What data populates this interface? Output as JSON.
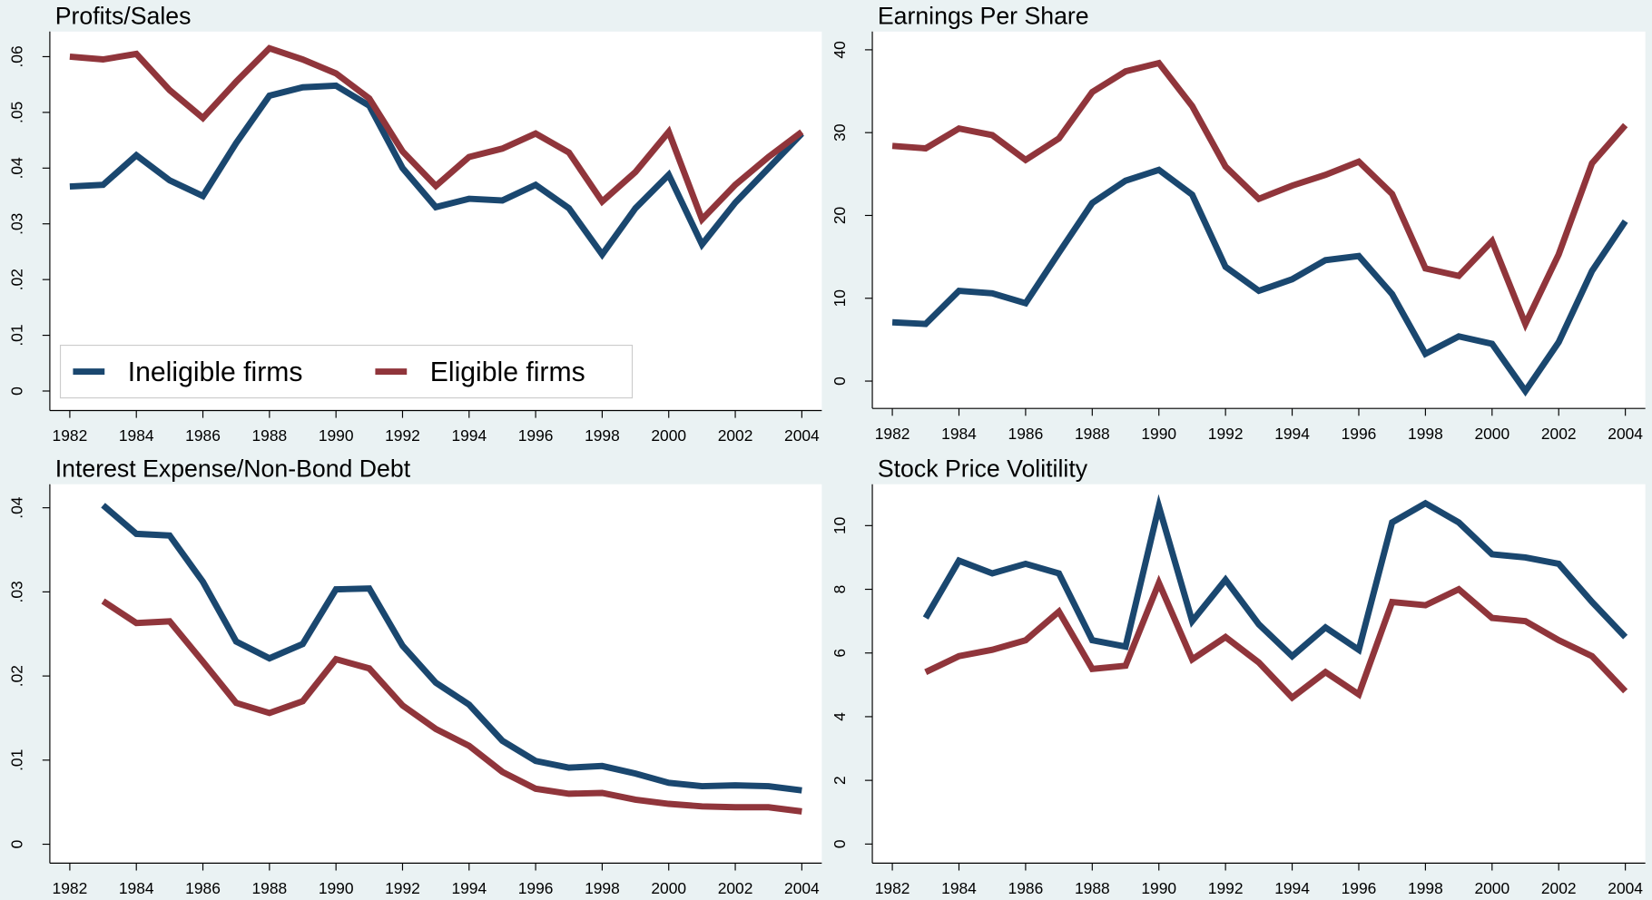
{
  "chart_data": [
    {
      "type": "line",
      "title": "Profits/Sales",
      "legend": "lower left",
      "grid": false,
      "x": [
        1982,
        1983,
        1984,
        1985,
        1986,
        1987,
        1988,
        1989,
        1990,
        1991,
        1992,
        1993,
        1994,
        1995,
        1996,
        1997,
        1998,
        1999,
        2000,
        2001,
        2002,
        2003,
        2004
      ],
      "xlim": [
        1981.4,
        2004.6
      ],
      "xticks": [
        1982,
        1984,
        1986,
        1988,
        1990,
        1992,
        1994,
        1996,
        1998,
        2000,
        2002,
        2004
      ],
      "ylim": [
        -0.0035,
        0.0645
      ],
      "yticks": [
        0,
        {
          "value": 0.01,
          "label": ".01"
        },
        {
          "value": 0.02,
          "label": ".02"
        },
        {
          "value": 0.03,
          "label": ".03"
        },
        {
          "value": 0.04,
          "label": ".04"
        },
        {
          "value": 0.05,
          "label": ".05"
        },
        {
          "value": 0.06,
          "label": ".06"
        }
      ],
      "series": [
        {
          "name": "Ineligible firms",
          "color": "#1a476f",
          "values": [
            0.0367,
            0.037,
            0.0423,
            0.0378,
            0.035,
            0.0445,
            0.053,
            0.0545,
            0.0548,
            0.0512,
            0.04,
            0.033,
            0.0345,
            0.0342,
            0.037,
            0.0328,
            0.0245,
            0.0328,
            0.0388,
            0.0263,
            0.0338,
            0.04,
            0.0462
          ]
        },
        {
          "name": "Eligible firms",
          "color": "#90353b",
          "values": [
            0.06,
            0.0595,
            0.0605,
            0.054,
            0.049,
            0.0555,
            0.0615,
            0.0595,
            0.057,
            0.0525,
            0.043,
            0.0368,
            0.042,
            0.0435,
            0.0462,
            0.0428,
            0.034,
            0.0393,
            0.0465,
            0.0308,
            0.037,
            0.042,
            0.0465
          ]
        }
      ]
    },
    {
      "type": "line",
      "title": "Earnings Per Share",
      "grid": false,
      "x": [
        1982,
        1983,
        1984,
        1985,
        1986,
        1987,
        1988,
        1989,
        1990,
        1991,
        1992,
        1993,
        1994,
        1995,
        1996,
        1997,
        1998,
        1999,
        2000,
        2001,
        2002,
        2003,
        2004
      ],
      "xlim": [
        1981.4,
        2004.6
      ],
      "xticks": [
        1982,
        1984,
        1986,
        1988,
        1990,
        1992,
        1994,
        1996,
        1998,
        2000,
        2002,
        2004
      ],
      "ylim": [
        -3.3,
        42.2
      ],
      "yticks": [
        0,
        10,
        20,
        30,
        40
      ],
      "series": [
        {
          "color": "#1a476f",
          "values": [
            7.1,
            6.9,
            10.9,
            10.6,
            9.4,
            15.5,
            21.5,
            24.2,
            25.5,
            22.5,
            13.8,
            10.9,
            12.3,
            14.6,
            15.1,
            10.5,
            3.3,
            5.4,
            4.5,
            -1.2,
            4.7,
            13.3,
            19.3
          ]
        },
        {
          "color": "#90353b",
          "values": [
            28.4,
            28.1,
            30.5,
            29.7,
            26.7,
            29.3,
            34.9,
            37.4,
            38.4,
            33.2,
            25.9,
            22.0,
            23.6,
            24.9,
            26.5,
            22.6,
            13.6,
            12.7,
            16.9,
            6.9,
            15.3,
            26.3,
            30.9
          ]
        }
      ]
    },
    {
      "type": "line",
      "title": "Interest Expense/Non-Bond Debt",
      "grid": false,
      "x": [
        1983,
        1984,
        1985,
        1986,
        1987,
        1988,
        1989,
        1990,
        1991,
        1992,
        1993,
        1994,
        1995,
        1996,
        1997,
        1998,
        1999,
        2000,
        2001,
        2002,
        2003,
        2004
      ],
      "xlim": [
        1981.4,
        2004.6
      ],
      "xticks": [
        1982,
        1984,
        1986,
        1988,
        1990,
        1992,
        1994,
        1996,
        1998,
        2000,
        2002,
        2004
      ],
      "ylim": [
        -0.00225,
        0.0428
      ],
      "yticks": [
        0,
        {
          "value": 0.01,
          "label": ".01"
        },
        {
          "value": 0.02,
          "label": ".02"
        },
        {
          "value": 0.03,
          "label": ".03"
        },
        {
          "value": 0.04,
          "label": ".04"
        }
      ],
      "series": [
        {
          "color": "#1a476f",
          "values": [
            0.0403,
            0.0369,
            0.0367,
            0.0312,
            0.0241,
            0.0221,
            0.0238,
            0.0303,
            0.0304,
            0.0236,
            0.0192,
            0.0166,
            0.0123,
            0.0099,
            0.0091,
            0.0093,
            0.0084,
            0.0073,
            0.0069,
            0.007,
            0.0069,
            0.0064
          ]
        },
        {
          "color": "#90353b",
          "values": [
            0.0289,
            0.0263,
            0.0265,
            0.0217,
            0.0168,
            0.0156,
            0.017,
            0.022,
            0.0209,
            0.0165,
            0.0137,
            0.0117,
            0.0086,
            0.0066,
            0.006,
            0.0061,
            0.0053,
            0.0048,
            0.0045,
            0.0044,
            0.0044,
            0.0039
          ]
        }
      ]
    },
    {
      "type": "line",
      "title": "Stock Price Volitility",
      "grid": false,
      "x": [
        1983,
        1984,
        1985,
        1986,
        1987,
        1988,
        1989,
        1990,
        1991,
        1992,
        1993,
        1994,
        1995,
        1996,
        1997,
        1998,
        1999,
        2000,
        2001,
        2002,
        2003,
        2004
      ],
      "xlim": [
        1981.4,
        2004.6
      ],
      "xticks": [
        1982,
        1984,
        1986,
        1988,
        1990,
        1992,
        1994,
        1996,
        1998,
        2000,
        2002,
        2004
      ],
      "ylim": [
        -0.6,
        11.3
      ],
      "yticks": [
        0,
        2,
        4,
        6,
        8,
        10
      ],
      "series": [
        {
          "color": "#1a476f",
          "values": [
            7.1,
            8.9,
            8.5,
            8.8,
            8.5,
            6.4,
            6.2,
            10.6,
            7.0,
            8.3,
            6.9,
            5.9,
            6.8,
            6.1,
            10.1,
            10.7,
            10.1,
            9.1,
            9.0,
            8.8,
            7.6,
            6.5
          ]
        },
        {
          "color": "#90353b",
          "values": [
            5.4,
            5.9,
            6.1,
            6.4,
            7.3,
            5.5,
            5.6,
            8.2,
            5.8,
            6.5,
            5.7,
            4.6,
            5.4,
            4.7,
            7.6,
            7.5,
            8.0,
            7.1,
            7.0,
            6.4,
            5.9,
            4.8
          ]
        }
      ]
    }
  ]
}
